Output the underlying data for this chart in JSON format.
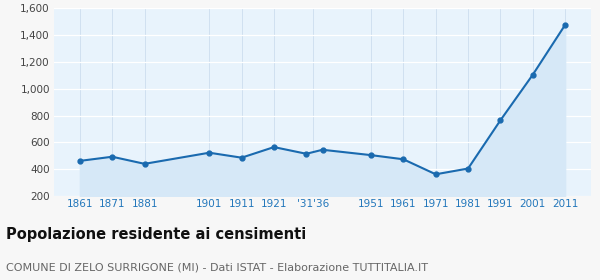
{
  "years": [
    1861,
    1871,
    1881,
    1901,
    1911,
    1921,
    1931,
    1936,
    1951,
    1961,
    1971,
    1981,
    1991,
    2001,
    2011
  ],
  "population": [
    462,
    493,
    440,
    523,
    486,
    565,
    515,
    545,
    505,
    474,
    362,
    405,
    765,
    1105,
    1477
  ],
  "tick_positions": [
    1861,
    1871,
    1881,
    1901,
    1911,
    1921,
    1933,
    1951,
    1961,
    1971,
    1981,
    1991,
    2001,
    2011
  ],
  "tick_labels": [
    "1861",
    "1871",
    "1881",
    "1901",
    "1911",
    "1921",
    "'31'36",
    "1951",
    "1961",
    "1971",
    "1981",
    "1991",
    "2001",
    "2011"
  ],
  "ylim": [
    200,
    1600
  ],
  "yticks": [
    200,
    400,
    600,
    800,
    1000,
    1200,
    1400,
    1600
  ],
  "ytick_labels": [
    "200",
    "400",
    "600",
    "800",
    "1,000",
    "1,200",
    "1,400",
    "1,600"
  ],
  "line_color": "#1a6aaf",
  "fill_color": "#d6e8f7",
  "marker_color": "#1a6aaf",
  "bg_color": "#f7f7f7",
  "plot_bg": "#e8f3fc",
  "grid_color": "#ffffff",
  "vgrid_color": "#ccddee",
  "title": "Popolazione residente ai censimenti",
  "subtitle": "COMUNE DI ZELO SURRIGONE (MI) - Dati ISTAT - Elaborazione TUTTITALIA.IT",
  "title_color": "#111111",
  "subtitle_color": "#666666",
  "tick_color": "#2277bb",
  "title_fontsize": 10.5,
  "subtitle_fontsize": 8,
  "xlim_left": 1853,
  "xlim_right": 2019
}
